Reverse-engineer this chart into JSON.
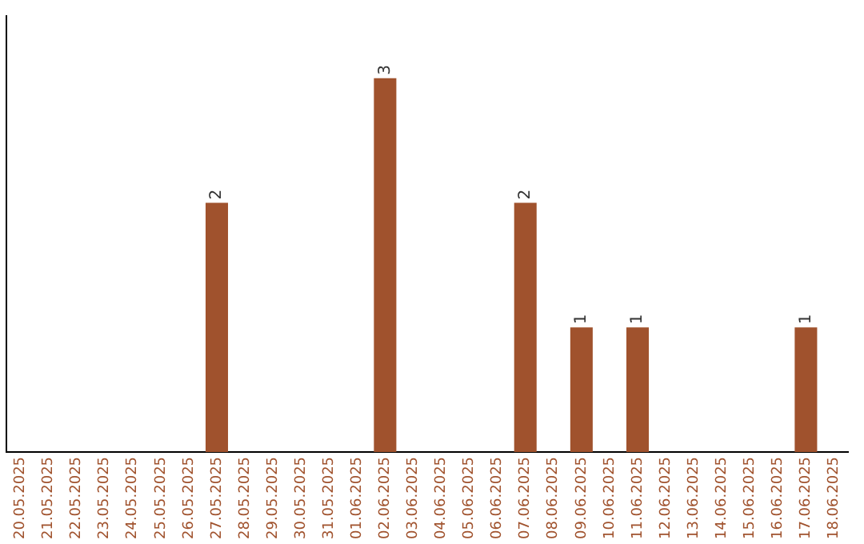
{
  "chart_data": {
    "type": "bar",
    "categories": [
      "20.05.2025",
      "21.05.2025",
      "22.05.2025",
      "23.05.2025",
      "24.05.2025",
      "25.05.2025",
      "26.05.2025",
      "27.05.2025",
      "28.05.2025",
      "29.05.2025",
      "30.05.2025",
      "31.05.2025",
      "01.06.2025",
      "02.06.2025",
      "03.06.2025",
      "04.06.2025",
      "05.06.2025",
      "06.06.2025",
      "07.06.2025",
      "08.06.2025",
      "09.06.2025",
      "10.06.2025",
      "11.06.2025",
      "12.06.2025",
      "13.06.2025",
      "14.06.2025",
      "15.06.2025",
      "16.06.2025",
      "17.06.2025",
      "18.06.2025"
    ],
    "values": [
      0,
      0,
      0,
      0,
      0,
      0,
      0,
      2,
      0,
      0,
      0,
      0,
      0,
      3,
      0,
      0,
      0,
      0,
      2,
      0,
      1,
      0,
      1,
      0,
      0,
      0,
      0,
      0,
      1,
      0
    ],
    "value_labels": [
      null,
      null,
      null,
      null,
      null,
      null,
      null,
      "2",
      null,
      null,
      null,
      null,
      null,
      "3",
      null,
      null,
      null,
      null,
      "2",
      null,
      "1",
      null,
      "1",
      null,
      null,
      null,
      null,
      null,
      "1",
      null
    ],
    "color": "#a0522d",
    "grid": false,
    "legend": false
  }
}
